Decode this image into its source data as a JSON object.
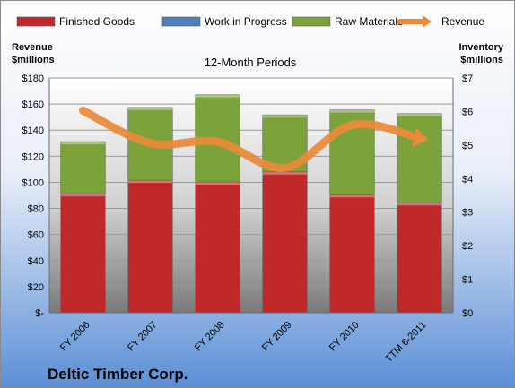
{
  "chart_data": {
    "type": "bar",
    "title": "12-Month Periods",
    "company": "Deltic Timber Corp.",
    "categories": [
      "FY 2006",
      "FY 2007",
      "FY 2008",
      "FY 2009",
      "FY 2010",
      "TTM 6-2011"
    ],
    "stacked": true,
    "left_axis": {
      "label_line1": "Revenue",
      "label_line2": "$millions",
      "range": [
        0,
        180
      ],
      "ticks": [
        "$-",
        "$20",
        "$40",
        "$60",
        "$80",
        "$100",
        "$120",
        "$140",
        "$160",
        "$180"
      ]
    },
    "right_axis": {
      "label_line1": "Inventory",
      "label_line2": "$millions",
      "range": [
        0,
        7
      ],
      "ticks": [
        "$0",
        "$1",
        "$2",
        "$3",
        "$4",
        "$5",
        "$6",
        "$7"
      ]
    },
    "series": [
      {
        "name": "Finished Goods",
        "axis": "right",
        "color": "#c0282a",
        "values": [
          3.55,
          3.95,
          3.9,
          4.2,
          3.52,
          3.28
        ]
      },
      {
        "name": "Work in Progress",
        "axis": "right",
        "color": "#4f7fc0",
        "values": [
          0,
          0,
          0,
          0,
          0,
          0
        ]
      },
      {
        "name": "Raw Materials",
        "axis": "right",
        "color": "#7ca23a",
        "values": [
          1.55,
          2.17,
          2.6,
          1.7,
          2.53,
          2.66
        ]
      },
      {
        "name": "Revenue",
        "axis": "left",
        "type": "line",
        "color": "#ea8a3a",
        "values": [
          155,
          130,
          131,
          111,
          144,
          134
        ]
      }
    ],
    "grid": true,
    "legend": "top"
  }
}
